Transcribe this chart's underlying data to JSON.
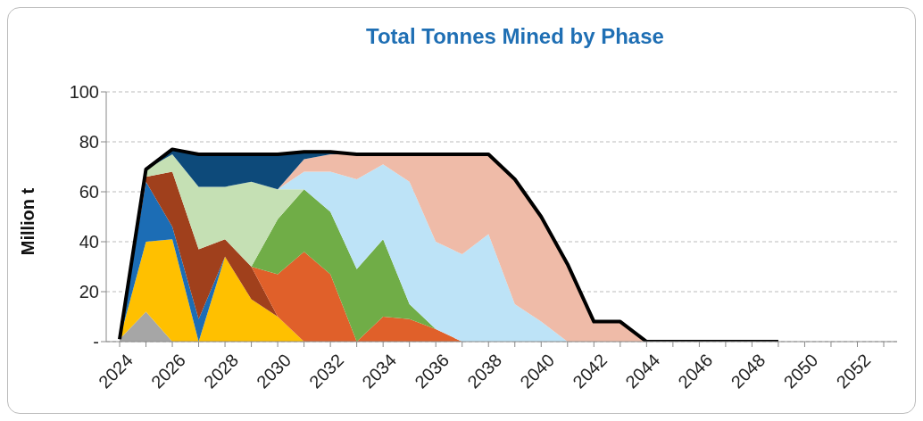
{
  "chart_data": {
    "type": "area",
    "title": "Total Tonnes Mined by Phase",
    "ylabel": "Million t",
    "categories": [
      "2024",
      null,
      "2026",
      null,
      "2028",
      null,
      "2030",
      null,
      "2032",
      null,
      "2034",
      null,
      "2036",
      null,
      "2038",
      null,
      "2040",
      null,
      "2042",
      null,
      "2044",
      null,
      "2046",
      null,
      "2048",
      null,
      "2050",
      null,
      "2052",
      null
    ],
    "stacked": true,
    "ylim": [
      0,
      100
    ],
    "yticks": [
      {
        "value": 0,
        "label": "-"
      },
      20,
      40,
      60,
      80,
      100
    ],
    "grid": "y",
    "legend": false,
    "series": [
      {
        "color": "#a6a6a6",
        "values": [
          1,
          12,
          0,
          null,
          null,
          null,
          null,
          null,
          null,
          null,
          null,
          null,
          null,
          null,
          null,
          null,
          null,
          null,
          null,
          null,
          null,
          null,
          null,
          null,
          null,
          null,
          null,
          null,
          null,
          null
        ]
      },
      {
        "color": "#ffc000",
        "values": [
          0,
          28,
          41,
          0,
          34,
          17,
          10,
          0,
          null,
          null,
          null,
          null,
          null,
          null,
          null,
          null,
          null,
          null,
          null,
          null,
          null,
          null,
          null,
          null,
          null,
          null,
          null,
          null,
          null,
          null
        ]
      },
      {
        "color": "#1c6db5",
        "values": [
          0,
          24,
          5,
          9,
          0,
          null,
          null,
          null,
          null,
          null,
          null,
          null,
          null,
          null,
          null,
          null,
          null,
          null,
          null,
          null,
          null,
          null,
          null,
          null,
          null,
          null,
          null,
          null,
          null,
          null
        ]
      },
      {
        "color": "#a0401c",
        "values": [
          0,
          2,
          22,
          28,
          7,
          13,
          0,
          null,
          null,
          null,
          null,
          null,
          null,
          null,
          null,
          null,
          null,
          null,
          null,
          null,
          null,
          null,
          null,
          null,
          null,
          null,
          null,
          null,
          null,
          null
        ]
      },
      {
        "color": "#e0602a",
        "values": [
          null,
          null,
          null,
          null,
          null,
          0,
          17,
          36,
          27,
          0,
          10,
          9,
          5,
          0,
          null,
          null,
          null,
          null,
          null,
          null,
          null,
          null,
          null,
          null,
          null,
          null,
          null,
          null,
          null,
          null
        ]
      },
      {
        "color": "#70ad47",
        "values": [
          null,
          null,
          null,
          null,
          null,
          0,
          22,
          25,
          25,
          29,
          31,
          6,
          0,
          null,
          null,
          null,
          null,
          null,
          null,
          null,
          null,
          null,
          null,
          null,
          null,
          null,
          null,
          null,
          null,
          null
        ]
      },
      {
        "color": "#c5e0b4",
        "values": [
          0,
          3,
          7,
          25,
          21,
          34,
          12,
          0,
          null,
          null,
          null,
          null,
          null,
          null,
          null,
          null,
          null,
          null,
          null,
          null,
          null,
          null,
          null,
          null,
          null,
          null,
          null,
          null,
          null,
          null
        ]
      },
      {
        "color": "#bde3f7",
        "values": [
          null,
          null,
          null,
          null,
          null,
          null,
          0,
          7,
          16,
          36,
          30,
          49,
          35,
          35,
          43,
          15,
          8,
          0,
          null,
          null,
          null,
          null,
          null,
          null,
          null,
          null,
          null,
          null,
          null,
          null
        ]
      },
      {
        "color": "#efbba8",
        "values": [
          null,
          null,
          null,
          null,
          null,
          null,
          0,
          5,
          7,
          10,
          4,
          11,
          35,
          40,
          32,
          50,
          42,
          31,
          8,
          8,
          0,
          null,
          null,
          null,
          null,
          null,
          null,
          null,
          null,
          null
        ]
      },
      {
        "color": "#0d4a7a",
        "values": [
          null,
          0,
          2,
          13,
          13,
          11,
          14,
          3,
          1,
          0,
          null,
          null,
          null,
          null,
          null,
          null,
          null,
          null,
          null,
          null,
          null,
          null,
          null,
          null,
          null,
          null,
          null,
          null,
          null,
          null
        ]
      },
      {
        "type": "line",
        "color": "#000000",
        "values": [
          1,
          69,
          77,
          75,
          75,
          75,
          75,
          76,
          76,
          75,
          75,
          75,
          75,
          75,
          75,
          65,
          50,
          31,
          8,
          8,
          0,
          0,
          0,
          0,
          0,
          0,
          null,
          null,
          null,
          null
        ]
      }
    ]
  }
}
